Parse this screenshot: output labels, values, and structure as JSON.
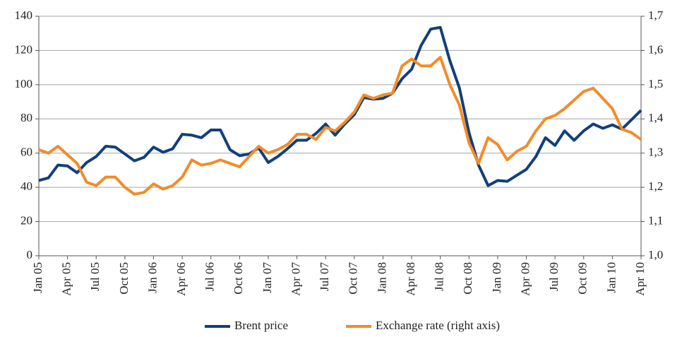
{
  "chart_data": {
    "type": "line",
    "categories": [
      "Jan 05",
      null,
      null,
      "Apr 05",
      null,
      null,
      "Jul 05",
      null,
      null,
      "Oct 05",
      null,
      null,
      "Jan 06",
      null,
      null,
      "Apr 06",
      null,
      null,
      "Jul 06",
      null,
      null,
      "Oct 06",
      null,
      null,
      "Jan 07",
      null,
      null,
      "Apr 07",
      null,
      null,
      "Jul 07",
      null,
      null,
      "Oct 07",
      null,
      null,
      "Jan 08",
      null,
      null,
      "Apr 08",
      null,
      null,
      "Jul 08",
      null,
      null,
      "Oct 08",
      null,
      null,
      "Jan 09",
      null,
      null,
      "Apr 09",
      null,
      null,
      "Jul 09",
      null,
      null,
      "Oct 09",
      null,
      null,
      "Jan 10",
      null,
      null,
      "Apr 10"
    ],
    "series": [
      {
        "name": "Brent price",
        "color": "#123f7c",
        "values": [
          44,
          45.5,
          53,
          52.5,
          48.5,
          54.5,
          58,
          64,
          63.5,
          59.5,
          55.5,
          57.5,
          63.5,
          60.5,
          62.5,
          71,
          70.5,
          69,
          73.5,
          73.5,
          62,
          58.5,
          59.5,
          63,
          54.5,
          58,
          62.5,
          67.5,
          67.5,
          71.5,
          77,
          70.5,
          77,
          82.5,
          92.5,
          91.5,
          92,
          95,
          103.5,
          109,
          123,
          132.5,
          133.5,
          114,
          98,
          72,
          53,
          41,
          44,
          43.5,
          47,
          50.5,
          58,
          69,
          64.5,
          73,
          67.5,
          73,
          77,
          74.5,
          76.5,
          74,
          79.5,
          85
        ]
      },
      {
        "name": "Exchange rate (right axis)",
        "color": "#f28c28",
        "axis": "y2",
        "values": [
          1.31,
          1.3,
          1.32,
          1.295,
          1.27,
          1.215,
          1.205,
          1.23,
          1.23,
          1.2,
          1.18,
          1.185,
          1.21,
          1.195,
          1.205,
          1.23,
          1.28,
          1.265,
          1.27,
          1.28,
          1.27,
          1.26,
          1.29,
          1.32,
          1.3,
          1.31,
          1.325,
          1.355,
          1.355,
          1.34,
          1.375,
          1.365,
          1.39,
          1.42,
          1.47,
          1.46,
          1.47,
          1.475,
          1.555,
          1.575,
          1.555,
          1.555,
          1.58,
          1.5,
          1.44,
          1.33,
          1.27,
          1.345,
          1.325,
          1.28,
          1.305,
          1.32,
          1.365,
          1.4,
          1.41,
          1.43,
          1.455,
          1.48,
          1.49,
          1.46,
          1.43,
          1.37,
          1.36,
          1.34
        ]
      }
    ],
    "ylim": [
      0,
      140
    ],
    "yticks": [
      0,
      20,
      40,
      60,
      80,
      100,
      120,
      140
    ],
    "y2lim": [
      1,
      1.7
    ],
    "y2ticks": [
      {
        "value": 1,
        "label": "1,0"
      },
      {
        "value": 1.1,
        "label": "1,1"
      },
      {
        "value": 1.2,
        "label": "1,2"
      },
      {
        "value": 1.3,
        "label": "1,3"
      },
      {
        "value": 1.4,
        "label": "1,4"
      },
      {
        "value": 1.5,
        "label": "1,5"
      },
      {
        "value": 1.6,
        "label": "1,6"
      },
      {
        "value": 1.7,
        "label": "1,7"
      }
    ],
    "grid": true,
    "legend": "bottom"
  }
}
